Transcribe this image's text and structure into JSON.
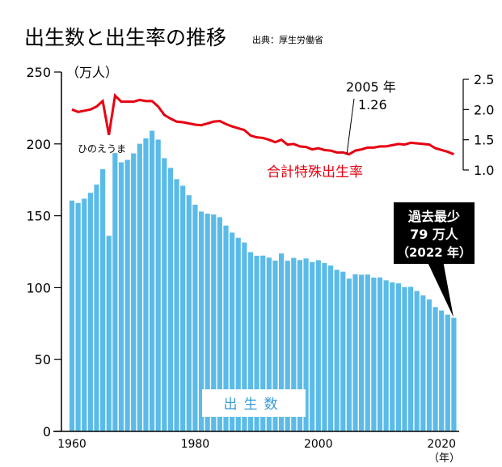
{
  "title": "出生数と出生率の推移",
  "source": "出典：厚生労働省",
  "chart_data": {
    "type": "bar+line",
    "title": "出生数と出生率の推移",
    "x": [
      1960,
      1961,
      1962,
      1963,
      1964,
      1965,
      1966,
      1967,
      1968,
      1969,
      1970,
      1971,
      1972,
      1973,
      1974,
      1975,
      1976,
      1977,
      1978,
      1979,
      1980,
      1981,
      1982,
      1983,
      1984,
      1985,
      1986,
      1987,
      1988,
      1989,
      1990,
      1991,
      1992,
      1993,
      1994,
      1995,
      1996,
      1997,
      1998,
      1999,
      2000,
      2001,
      2002,
      2003,
      2004,
      2005,
      2006,
      2007,
      2008,
      2009,
      2010,
      2011,
      2012,
      2013,
      2014,
      2015,
      2016,
      2017,
      2018,
      2019,
      2020,
      2021,
      2022
    ],
    "xticks": [
      "1960",
      "1980",
      "2000",
      "2020"
    ],
    "xlabel": "（年）",
    "ylabel_left": "（万人）",
    "yticks_left": [
      "0",
      "50",
      "100",
      "150",
      "200",
      "250"
    ],
    "ylim_left": [
      0,
      250
    ],
    "yticks_right": [
      "1.0",
      "1.5",
      "2.0",
      "2.5"
    ],
    "ylim_right": [
      1.0,
      2.5
    ],
    "series": [
      {
        "name": "出生数",
        "type": "bar",
        "axis": "left",
        "color": "#5bbbe8",
        "values": [
          160.6,
          158.9,
          161.9,
          166.0,
          171.7,
          182.4,
          136.1,
          193.6,
          187.2,
          188.9,
          193.4,
          200.1,
          203.9,
          209.2,
          203.0,
          190.1,
          183.3,
          175.5,
          170.9,
          164.3,
          157.7,
          152.9,
          151.5,
          150.9,
          149.0,
          143.2,
          138.3,
          134.7,
          131.4,
          124.7,
          122.2,
          122.3,
          120.9,
          118.8,
          123.8,
          118.7,
          120.7,
          119.2,
          120.3,
          117.8,
          119.1,
          117.1,
          115.4,
          112.4,
          111.1,
          106.3,
          109.3,
          109.0,
          109.1,
          107.0,
          107.1,
          105.1,
          103.7,
          103.0,
          100.4,
          100.6,
          97.7,
          94.6,
          91.8,
          86.5,
          84.1,
          81.2,
          79.0
        ]
      },
      {
        "name": "合計特殊出生率",
        "type": "line",
        "axis": "right",
        "color": "#e60012",
        "values": [
          2.0,
          1.96,
          1.98,
          2.0,
          2.05,
          2.14,
          1.58,
          2.23,
          2.13,
          2.13,
          2.13,
          2.16,
          2.14,
          2.14,
          2.05,
          1.91,
          1.85,
          1.8,
          1.79,
          1.77,
          1.75,
          1.74,
          1.77,
          1.8,
          1.81,
          1.76,
          1.72,
          1.69,
          1.66,
          1.57,
          1.54,
          1.53,
          1.5,
          1.46,
          1.5,
          1.42,
          1.43,
          1.39,
          1.38,
          1.34,
          1.36,
          1.33,
          1.32,
          1.29,
          1.29,
          1.26,
          1.32,
          1.34,
          1.37,
          1.37,
          1.39,
          1.39,
          1.41,
          1.43,
          1.42,
          1.45,
          1.44,
          1.43,
          1.42,
          1.36,
          1.33,
          1.3,
          1.26
        ]
      }
    ],
    "annotations": {
      "hinoeuma": "ひのえうま",
      "min_tfr_year": "2005 年",
      "min_tfr_value": "1.26",
      "record_low_line1": "過去最少",
      "record_low_line2": "79 万人",
      "record_low_line3": "（2022 年）"
    },
    "grid": false
  }
}
